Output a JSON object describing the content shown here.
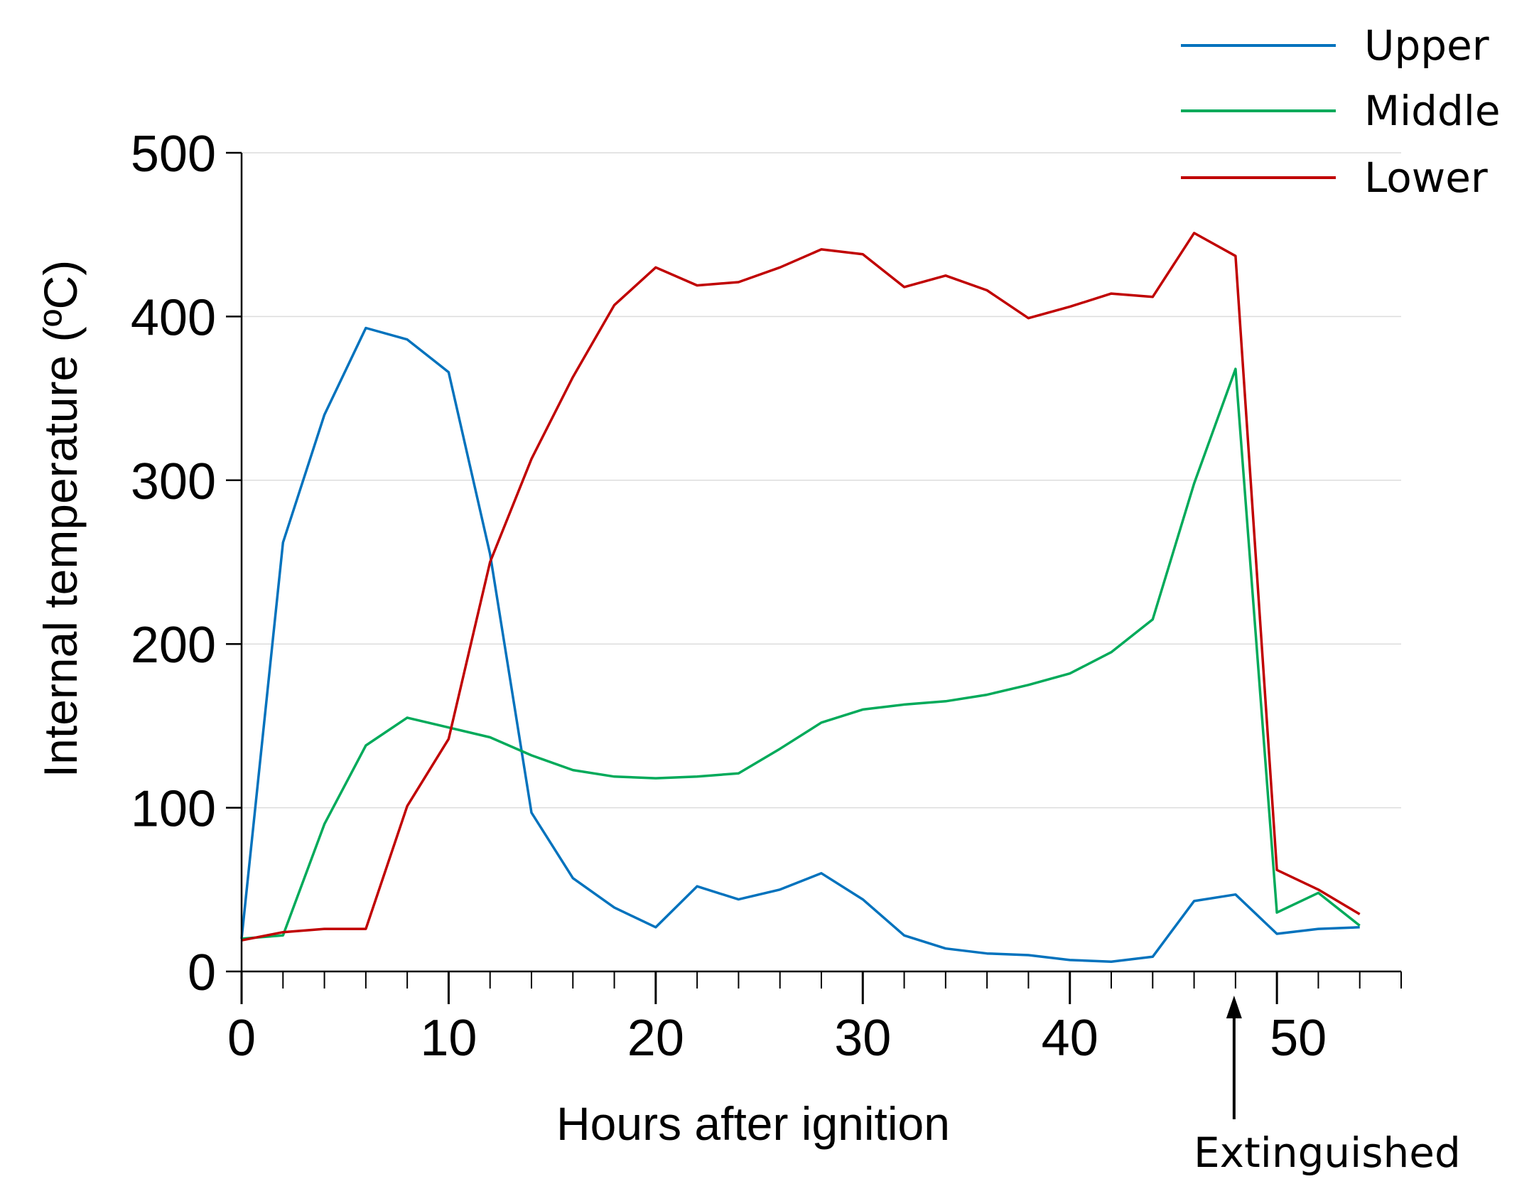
{
  "chart_data": {
    "type": "line",
    "title": "",
    "xlabel": "Hours after ignition",
    "ylabel": "Internal temperature (ºC)",
    "xlim": [
      0,
      56
    ],
    "ylim": [
      0,
      500
    ],
    "x_ticks": [
      0,
      10,
      20,
      30,
      40,
      50
    ],
    "x_minor_ticks": [
      0,
      2,
      4,
      6,
      8,
      10,
      12,
      14,
      16,
      18,
      20,
      22,
      24,
      26,
      28,
      30,
      32,
      34,
      36,
      38,
      40,
      42,
      44,
      46,
      48,
      50,
      52,
      54,
      56
    ],
    "y_ticks": [
      0,
      100,
      200,
      300,
      400,
      500
    ],
    "grid": true,
    "legend_position": "top-right",
    "x": [
      0,
      2,
      4,
      6,
      8,
      10,
      12,
      14,
      16,
      18,
      20,
      22,
      24,
      26,
      28,
      30,
      32,
      34,
      36,
      38,
      40,
      42,
      44,
      46,
      48,
      50,
      52,
      54
    ],
    "series": [
      {
        "name": "Upper",
        "color": "#0072BD",
        "values": [
          20,
          262,
          340,
          393,
          386,
          366,
          255,
          97,
          57,
          39,
          27,
          52,
          44,
          50,
          60,
          44,
          22,
          14,
          11,
          10,
          7,
          6,
          9,
          43,
          47,
          23,
          26,
          27
        ]
      },
      {
        "name": "Middle",
        "color": "#00AA5A",
        "values": [
          20,
          22,
          90,
          138,
          155,
          149,
          143,
          132,
          123,
          119,
          118,
          119,
          121,
          136,
          152,
          160,
          163,
          165,
          169,
          175,
          182,
          195,
          215,
          298,
          368,
          36,
          48,
          28
        ]
      },
      {
        "name": "Lower",
        "color": "#C00000",
        "values": [
          19,
          24,
          26,
          26,
          101,
          142,
          250,
          313,
          363,
          407,
          430,
          419,
          421,
          430,
          441,
          438,
          418,
          425,
          416,
          399,
          406,
          414,
          412,
          451,
          437,
          62,
          50,
          35
        ]
      }
    ],
    "annotations": [
      {
        "text": "Extinguished",
        "x": 48,
        "type": "arrow"
      }
    ]
  }
}
